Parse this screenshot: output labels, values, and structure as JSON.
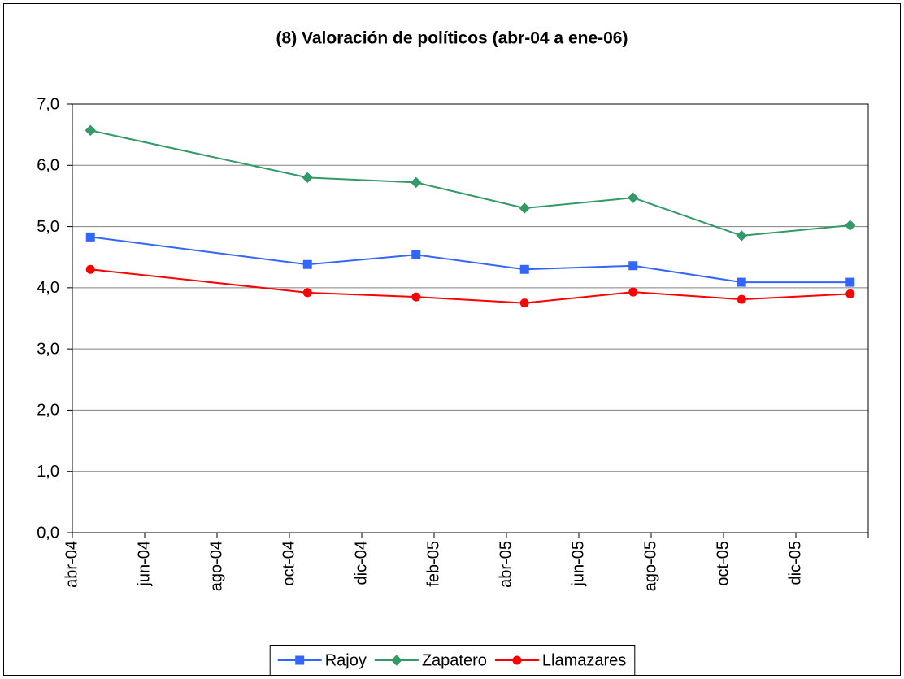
{
  "chart_data": {
    "type": "line",
    "title": "(8) Valoración de políticos (abr-04 a ene-06)",
    "x": [
      "2004-04",
      "2004-10",
      "2005-01",
      "2005-04",
      "2005-07",
      "2005-10",
      "2006-01"
    ],
    "series": [
      {
        "name": "Rajoy",
        "color": "#3366ff",
        "marker": "square",
        "values": [
          4.83,
          4.38,
          4.54,
          4.3,
          4.36,
          4.09,
          4.09
        ]
      },
      {
        "name": "Zapatero",
        "color": "#339966",
        "marker": "diamond",
        "values": [
          6.57,
          5.8,
          5.72,
          5.3,
          5.47,
          4.85,
          5.02
        ]
      },
      {
        "name": "Llamazares",
        "color": "#ff0000",
        "marker": "circle",
        "values": [
          4.3,
          3.92,
          3.85,
          3.75,
          3.93,
          3.81,
          3.9
        ]
      }
    ],
    "xlim": [
      "2004-04",
      "2006-02"
    ],
    "xticks": [
      {
        "value": "2004-04",
        "label": "abr-04"
      },
      {
        "value": "2004-06",
        "label": "jun-04"
      },
      {
        "value": "2004-08",
        "label": "ago-04"
      },
      {
        "value": "2004-10",
        "label": "oct-04"
      },
      {
        "value": "2004-12",
        "label": "dic-04"
      },
      {
        "value": "2005-02",
        "label": "feb-05"
      },
      {
        "value": "2005-04",
        "label": "abr-05"
      },
      {
        "value": "2005-06",
        "label": "jun-05"
      },
      {
        "value": "2005-08",
        "label": "ago-05"
      },
      {
        "value": "2005-10",
        "label": "oct-05"
      },
      {
        "value": "2005-12",
        "label": "dic-05"
      }
    ],
    "ylim": [
      0,
      7
    ],
    "yticks": [
      {
        "value": 0,
        "label": "0,0"
      },
      {
        "value": 1,
        "label": "1,0"
      },
      {
        "value": 2,
        "label": "2,0"
      },
      {
        "value": 3,
        "label": "3,0"
      },
      {
        "value": 4,
        "label": "4,0"
      },
      {
        "value": 5,
        "label": "5,0"
      },
      {
        "value": 6,
        "label": "6,0"
      },
      {
        "value": 7,
        "label": "7,0"
      }
    ],
    "grid": true,
    "legend": "bottom"
  }
}
